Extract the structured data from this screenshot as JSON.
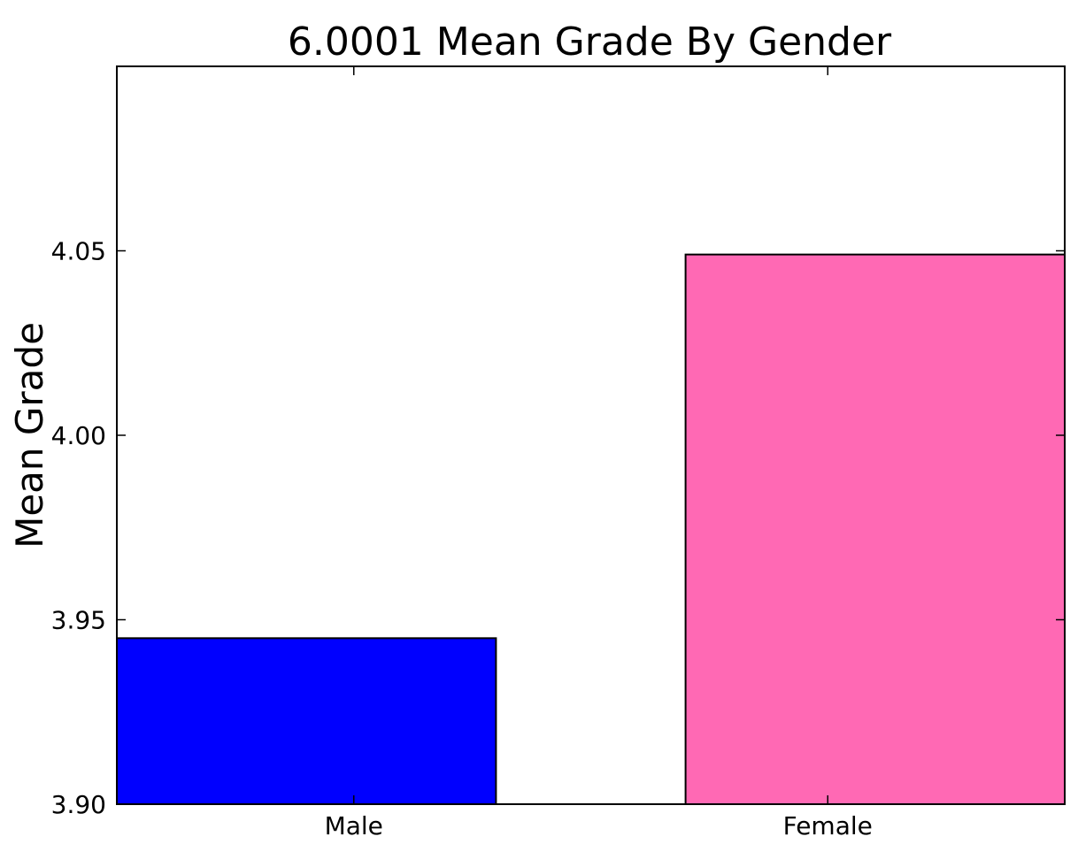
{
  "chart_data": {
    "type": "bar",
    "title": "6.0001 Mean Grade By Gender",
    "xlabel": "",
    "ylabel": "Mean Grade",
    "categories": [
      "Male",
      "Female"
    ],
    "values": [
      3.945,
      4.049
    ],
    "colors": [
      "#0000ff",
      "#ff69b4"
    ],
    "edge_color": "#000000",
    "ylim": [
      3.9,
      4.1
    ],
    "yticks": [
      3.9,
      3.95,
      4.0,
      4.05
    ],
    "ytick_labels": [
      "3.90",
      "3.95",
      "4.00",
      "4.05"
    ],
    "grid": false,
    "legend": "none"
  }
}
